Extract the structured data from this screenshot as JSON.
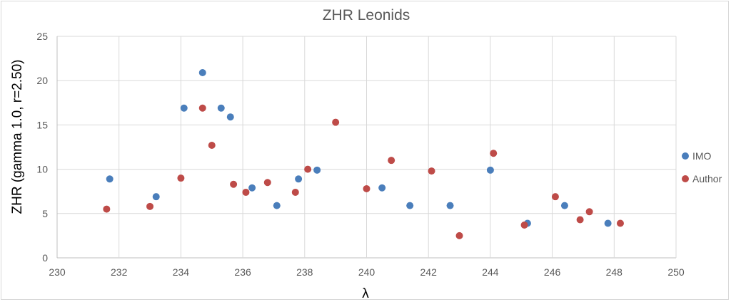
{
  "chart_data": {
    "type": "scatter",
    "title": "ZHR Leonids",
    "xlabel": "λ",
    "ylabel": "ZHR (gamma 1.0, r=2.50)",
    "xlim": [
      230,
      250
    ],
    "ylim": [
      0,
      25
    ],
    "xticks": [
      230,
      232,
      234,
      236,
      238,
      240,
      242,
      244,
      246,
      248,
      250
    ],
    "yticks": [
      0,
      5,
      10,
      15,
      20,
      25
    ],
    "grid": true,
    "legend_position": "right",
    "series": [
      {
        "name": "IMO",
        "color": "#4a7ebb",
        "points": [
          {
            "x": 231.7,
            "y": 8.9
          },
          {
            "x": 233.2,
            "y": 6.9
          },
          {
            "x": 234.1,
            "y": 16.9
          },
          {
            "x": 234.7,
            "y": 20.9
          },
          {
            "x": 235.3,
            "y": 16.9
          },
          {
            "x": 235.6,
            "y": 15.9
          },
          {
            "x": 236.3,
            "y": 7.9
          },
          {
            "x": 237.1,
            "y": 5.9
          },
          {
            "x": 237.8,
            "y": 8.9
          },
          {
            "x": 238.4,
            "y": 9.9
          },
          {
            "x": 240.5,
            "y": 7.9
          },
          {
            "x": 241.4,
            "y": 5.9
          },
          {
            "x": 242.7,
            "y": 5.9
          },
          {
            "x": 244.0,
            "y": 9.9
          },
          {
            "x": 245.2,
            "y": 3.9
          },
          {
            "x": 246.4,
            "y": 5.9
          },
          {
            "x": 247.8,
            "y": 3.9
          }
        ]
      },
      {
        "name": "Author",
        "color": "#be4b48",
        "points": [
          {
            "x": 231.6,
            "y": 5.5
          },
          {
            "x": 233.0,
            "y": 5.8
          },
          {
            "x": 234.0,
            "y": 9.0
          },
          {
            "x": 234.7,
            "y": 16.9
          },
          {
            "x": 235.0,
            "y": 12.7
          },
          {
            "x": 235.7,
            "y": 8.3
          },
          {
            "x": 236.1,
            "y": 7.4
          },
          {
            "x": 236.8,
            "y": 8.5
          },
          {
            "x": 237.7,
            "y": 7.4
          },
          {
            "x": 238.1,
            "y": 10.0
          },
          {
            "x": 239.0,
            "y": 15.3
          },
          {
            "x": 240.0,
            "y": 7.8
          },
          {
            "x": 240.8,
            "y": 11.0
          },
          {
            "x": 242.1,
            "y": 9.8
          },
          {
            "x": 243.0,
            "y": 2.5
          },
          {
            "x": 244.1,
            "y": 11.8
          },
          {
            "x": 245.1,
            "y": 3.7
          },
          {
            "x": 246.1,
            "y": 6.9
          },
          {
            "x": 246.9,
            "y": 4.3
          },
          {
            "x": 247.2,
            "y": 5.2
          },
          {
            "x": 248.2,
            "y": 3.9
          }
        ]
      }
    ]
  }
}
